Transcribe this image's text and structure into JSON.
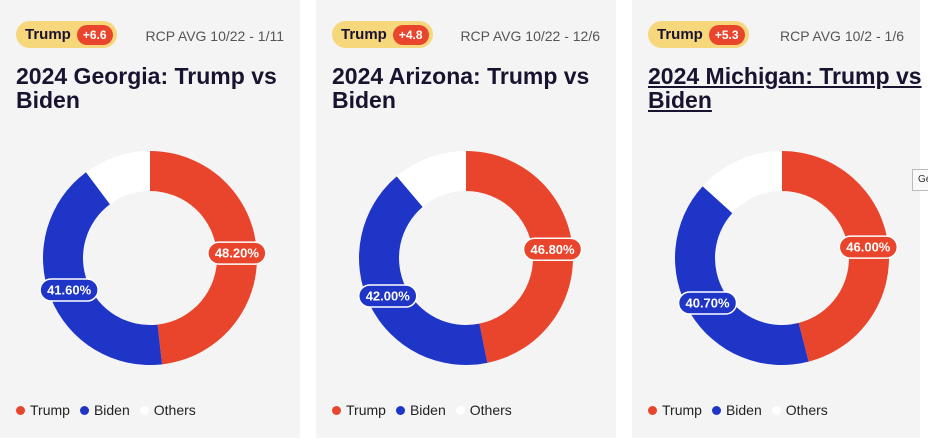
{
  "chart_data": [
    {
      "type": "pie",
      "donut": true,
      "badge_name": "Trump",
      "badge_spread": "+6.6",
      "subtitle": "RCP AVG 10/22 - 1/11",
      "title": "2024 Georgia: Trump vs Biden",
      "underline": false,
      "categories": [
        "Trump",
        "Biden",
        "Others"
      ],
      "values": [
        48.2,
        41.6,
        10.2
      ],
      "value_labels": [
        "48.20%",
        "41.60%",
        null
      ],
      "colors": [
        "#e8452c",
        "#1e35c8",
        "#ffffff"
      ]
    },
    {
      "type": "pie",
      "donut": true,
      "badge_name": "Trump",
      "badge_spread": "+4.8",
      "subtitle": "RCP AVG 10/22 - 12/6",
      "title": "2024 Arizona: Trump vs Biden",
      "underline": false,
      "categories": [
        "Trump",
        "Biden",
        "Others"
      ],
      "values": [
        46.8,
        42.0,
        11.2
      ],
      "value_labels": [
        "46.80%",
        "42.00%",
        null
      ],
      "colors": [
        "#e8452c",
        "#1e35c8",
        "#ffffff"
      ]
    },
    {
      "type": "pie",
      "donut": true,
      "badge_name": "Trump",
      "badge_spread": "+5.3",
      "subtitle": "RCP AVG 10/2 - 1/6",
      "title": "2024 Michigan: Trump vs Biden",
      "underline": true,
      "categories": [
        "Trump",
        "Biden",
        "Others"
      ],
      "values": [
        46.0,
        40.7,
        13.3
      ],
      "value_labels": [
        "46.00%",
        "40.70%",
        null
      ],
      "colors": [
        "#e8452c",
        "#1e35c8",
        "#ffffff"
      ]
    }
  ],
  "tooltip": "Ge"
}
